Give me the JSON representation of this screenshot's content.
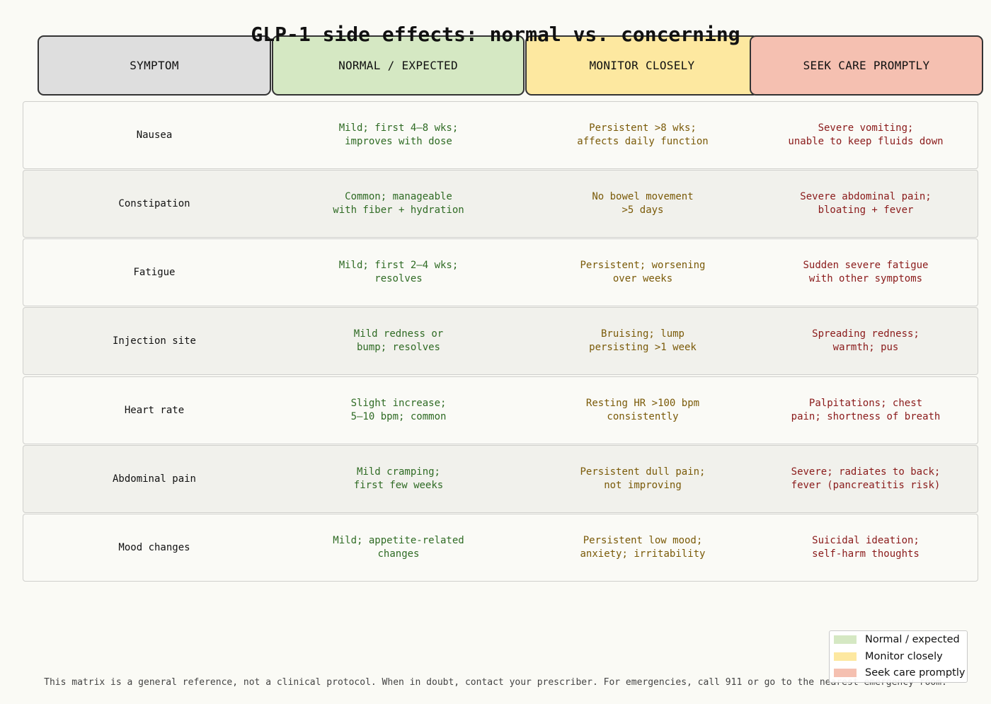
{
  "title": "GLP-1 side effects: normal vs. concerning",
  "colors": {
    "normal": "#d5e8c3",
    "monitor": "#fde8a0",
    "seek": "#f5c0b1",
    "symptom": "#dedede"
  },
  "headers": {
    "symptom": "SYMPTOM",
    "normal": "NORMAL / EXPECTED",
    "monitor": "MONITOR CLOSELY",
    "seek": "SEEK CARE PROMPTLY"
  },
  "rows": [
    {
      "symptom": "Nausea",
      "normal": "Mild; first 4–8 wks;\nimproves with dose",
      "monitor": "Persistent >8 wks;\naffects daily function",
      "seek": "Severe vomiting;\nunable to keep fluids down"
    },
    {
      "symptom": "Constipation",
      "normal": "Common; manageable\nwith fiber + hydration",
      "monitor": "No bowel movement\n>5 days",
      "seek": "Severe abdominal pain;\nbloating + fever"
    },
    {
      "symptom": "Fatigue",
      "normal": "Mild; first 2–4 wks;\nresolves",
      "monitor": "Persistent; worsening\nover weeks",
      "seek": "Sudden severe fatigue\nwith other symptoms"
    },
    {
      "symptom": "Injection site",
      "normal": "Mild redness or\nbump; resolves",
      "monitor": "Bruising; lump\npersisting >1 week",
      "seek": "Spreading redness;\nwarmth; pus"
    },
    {
      "symptom": "Heart rate",
      "normal": "Slight increase;\n5–10 bpm; common",
      "monitor": "Resting HR >100 bpm\nconsistently",
      "seek": "Palpitations; chest\npain; shortness of breath"
    },
    {
      "symptom": "Abdominal pain",
      "normal": "Mild cramping;\nfirst few weeks",
      "monitor": "Persistent dull pain;\nnot improving",
      "seek": "Severe; radiates to back;\nfever (pancreatitis risk)"
    },
    {
      "symptom": "Mood changes",
      "normal": "Mild; appetite-related\nchanges",
      "monitor": "Persistent low mood;\nanxiety; irritability",
      "seek": "Suicidal ideation;\nself-harm thoughts"
    }
  ],
  "legend": {
    "normal": "Normal / expected",
    "monitor": "Monitor closely",
    "seek": "Seek care promptly"
  },
  "footer": "This matrix is a general reference, not a clinical protocol. When in doubt, contact your prescriber. For emergencies, call 911 or go to the nearest emergency room."
}
